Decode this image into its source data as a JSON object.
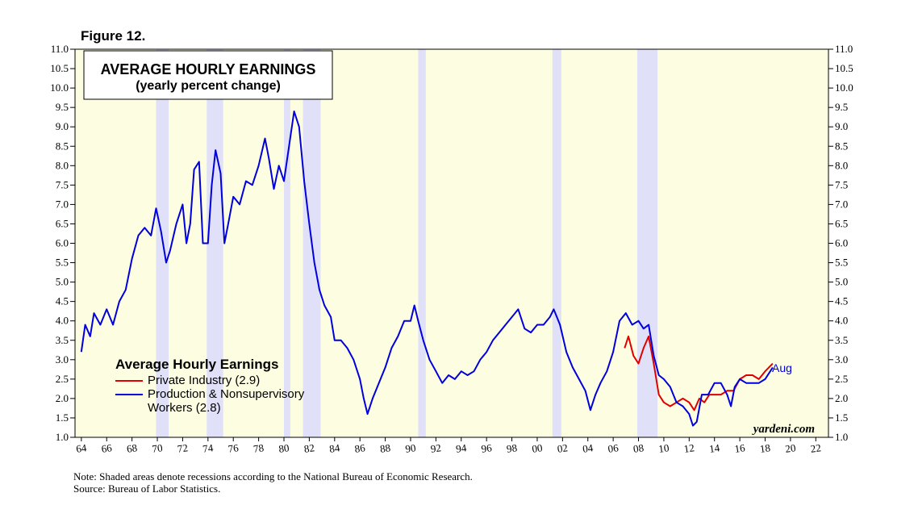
{
  "chart_data": {
    "type": "line",
    "figure_label": "Figure 12.",
    "title": "AVERAGE HOURLY EARNINGS",
    "subtitle": "(yearly percent change)",
    "legend_title": "Average Hourly Earnings",
    "annotation": "Aug",
    "watermark": "yardeni.com",
    "notes": [
      "Note: Shaded areas denote recessions according to the National Bureau of Economic Research.",
      "Source: Bureau of Labor Statistics."
    ],
    "background": "#fdfde2",
    "recession_color": "#e0e0f8",
    "recessions": [
      [
        1969.9,
        1970.9
      ],
      [
        1973.9,
        1975.2
      ],
      [
        1980.0,
        1980.5
      ],
      [
        1981.5,
        1982.9
      ],
      [
        1990.6,
        1991.2
      ],
      [
        2001.2,
        2001.9
      ],
      [
        2007.9,
        2009.5
      ]
    ],
    "xlim": [
      1963.5,
      2023
    ],
    "xticks": [
      {
        "value": 1964,
        "label": "64"
      },
      {
        "value": 1966,
        "label": "66"
      },
      {
        "value": 1968,
        "label": "68"
      },
      {
        "value": 1970,
        "label": "70"
      },
      {
        "value": 1972,
        "label": "72"
      },
      {
        "value": 1974,
        "label": "74"
      },
      {
        "value": 1976,
        "label": "76"
      },
      {
        "value": 1978,
        "label": "78"
      },
      {
        "value": 1980,
        "label": "80"
      },
      {
        "value": 1982,
        "label": "82"
      },
      {
        "value": 1984,
        "label": "84"
      },
      {
        "value": 1986,
        "label": "86"
      },
      {
        "value": 1988,
        "label": "88"
      },
      {
        "value": 1990,
        "label": "90"
      },
      {
        "value": 1992,
        "label": "92"
      },
      {
        "value": 1994,
        "label": "94"
      },
      {
        "value": 1996,
        "label": "96"
      },
      {
        "value": 1998,
        "label": "98"
      },
      {
        "value": 2000,
        "label": "00"
      },
      {
        "value": 2002,
        "label": "02"
      },
      {
        "value": 2004,
        "label": "04"
      },
      {
        "value": 2006,
        "label": "06"
      },
      {
        "value": 2008,
        "label": "08"
      },
      {
        "value": 2010,
        "label": "10"
      },
      {
        "value": 2012,
        "label": "12"
      },
      {
        "value": 2014,
        "label": "14"
      },
      {
        "value": 2016,
        "label": "16"
      },
      {
        "value": 2018,
        "label": "18"
      },
      {
        "value": 2020,
        "label": "20"
      },
      {
        "value": 2022,
        "label": "22"
      }
    ],
    "ylim": [
      1,
      11
    ],
    "yticks": [
      {
        "value": 1,
        "label": "1.0"
      },
      {
        "value": 1.5,
        "label": "1.5"
      },
      {
        "value": 2,
        "label": "2.0"
      },
      {
        "value": 2.5,
        "label": "2.5"
      },
      {
        "value": 3,
        "label": "3.0"
      },
      {
        "value": 3.5,
        "label": "3.5"
      },
      {
        "value": 4,
        "label": "4.0"
      },
      {
        "value": 4.5,
        "label": "4.5"
      },
      {
        "value": 5,
        "label": "5.0"
      },
      {
        "value": 5.5,
        "label": "5.5"
      },
      {
        "value": 6,
        "label": "6.0"
      },
      {
        "value": 6.5,
        "label": "6.5"
      },
      {
        "value": 7,
        "label": "7.0"
      },
      {
        "value": 7.5,
        "label": "7.5"
      },
      {
        "value": 8,
        "label": "8.0"
      },
      {
        "value": 8.5,
        "label": "8.5"
      },
      {
        "value": 9,
        "label": "9.0"
      },
      {
        "value": 9.5,
        "label": "9.5"
      },
      {
        "value": 10,
        "label": "10.0"
      },
      {
        "value": 10.5,
        "label": "10.5"
      },
      {
        "value": 11,
        "label": "11.0"
      }
    ],
    "series": [
      {
        "name": "Private Industry (2.9)",
        "color": "#e00000",
        "x": [
          2006.9,
          2007.2,
          2007.6,
          2008.0,
          2008.4,
          2008.8,
          2009.2,
          2009.6,
          2010.0,
          2010.5,
          2011.0,
          2011.5,
          2012.0,
          2012.4,
          2012.8,
          2013.2,
          2013.6,
          2014.0,
          2014.5,
          2015.0,
          2015.5,
          2016.0,
          2016.5,
          2017.0,
          2017.5,
          2018.0,
          2018.6
        ],
        "values": [
          3.3,
          3.6,
          3.1,
          2.9,
          3.3,
          3.6,
          2.9,
          2.1,
          1.9,
          1.8,
          1.9,
          2.0,
          1.9,
          1.7,
          2.0,
          1.9,
          2.1,
          2.1,
          2.1,
          2.2,
          2.2,
          2.5,
          2.6,
          2.6,
          2.5,
          2.7,
          2.9
        ]
      },
      {
        "name": "Production & Nonsupervisory Workers (2.8)",
        "color": "#0000dd",
        "x": [
          1964.0,
          1964.3,
          1964.7,
          1965.0,
          1965.5,
          1966.0,
          1966.5,
          1967.0,
          1967.5,
          1968.0,
          1968.5,
          1969.0,
          1969.5,
          1969.9,
          1970.3,
          1970.7,
          1971.0,
          1971.5,
          1972.0,
          1972.3,
          1972.6,
          1972.9,
          1973.3,
          1973.6,
          1974.0,
          1974.3,
          1974.6,
          1975.0,
          1975.3,
          1975.6,
          1976.0,
          1976.5,
          1977.0,
          1977.5,
          1978.0,
          1978.5,
          1978.8,
          1979.2,
          1979.6,
          1980.0,
          1980.4,
          1980.8,
          1981.2,
          1981.6,
          1982.0,
          1982.4,
          1982.8,
          1983.2,
          1983.7,
          1984.0,
          1984.5,
          1985.0,
          1985.5,
          1986.0,
          1986.3,
          1986.6,
          1987.0,
          1987.5,
          1988.0,
          1988.5,
          1989.0,
          1989.5,
          1990.0,
          1990.3,
          1990.6,
          1991.0,
          1991.5,
          1992.0,
          1992.5,
          1993.0,
          1993.5,
          1994.0,
          1994.5,
          1995.0,
          1995.5,
          1996.0,
          1996.5,
          1997.0,
          1997.5,
          1998.0,
          1998.5,
          1999.0,
          1999.5,
          2000.0,
          2000.5,
          2001.0,
          2001.3,
          2001.8,
          2002.3,
          2002.8,
          2003.3,
          2003.8,
          2004.2,
          2004.6,
          2005.0,
          2005.5,
          2006.0,
          2006.5,
          2007.0,
          2007.5,
          2008.0,
          2008.4,
          2008.8,
          2009.2,
          2009.6,
          2010.0,
          2010.5,
          2011.0,
          2011.5,
          2012.0,
          2012.3,
          2012.6,
          2013.0,
          2013.5,
          2014.0,
          2014.5,
          2015.0,
          2015.3,
          2015.6,
          2016.0,
          2016.5,
          2017.0,
          2017.5,
          2018.0,
          2018.6
        ],
        "values": [
          3.2,
          3.9,
          3.6,
          4.2,
          3.9,
          4.3,
          3.9,
          4.5,
          4.8,
          5.6,
          6.2,
          6.4,
          6.2,
          6.9,
          6.3,
          5.5,
          5.8,
          6.5,
          7.0,
          6.0,
          6.5,
          7.9,
          8.1,
          6.0,
          6.0,
          7.5,
          8.4,
          7.8,
          6.0,
          6.5,
          7.2,
          7.0,
          7.6,
          7.5,
          8.0,
          8.7,
          8.2,
          7.4,
          8.0,
          7.6,
          8.5,
          9.4,
          9.0,
          7.6,
          6.5,
          5.5,
          4.8,
          4.4,
          4.1,
          3.5,
          3.5,
          3.3,
          3.0,
          2.5,
          2.0,
          1.6,
          2.0,
          2.4,
          2.8,
          3.3,
          3.6,
          4.0,
          4.0,
          4.4,
          4.0,
          3.5,
          3.0,
          2.7,
          2.4,
          2.6,
          2.5,
          2.7,
          2.6,
          2.7,
          3.0,
          3.2,
          3.5,
          3.7,
          3.9,
          4.1,
          4.3,
          3.8,
          3.7,
          3.9,
          3.9,
          4.1,
          4.3,
          3.9,
          3.2,
          2.8,
          2.5,
          2.2,
          1.7,
          2.1,
          2.4,
          2.7,
          3.2,
          4.0,
          4.2,
          3.9,
          4.0,
          3.8,
          3.9,
          3.1,
          2.6,
          2.5,
          2.3,
          1.9,
          1.8,
          1.6,
          1.3,
          1.4,
          2.1,
          2.1,
          2.4,
          2.4,
          2.1,
          1.8,
          2.3,
          2.5,
          2.4,
          2.4,
          2.4,
          2.5,
          2.8
        ]
      }
    ]
  }
}
